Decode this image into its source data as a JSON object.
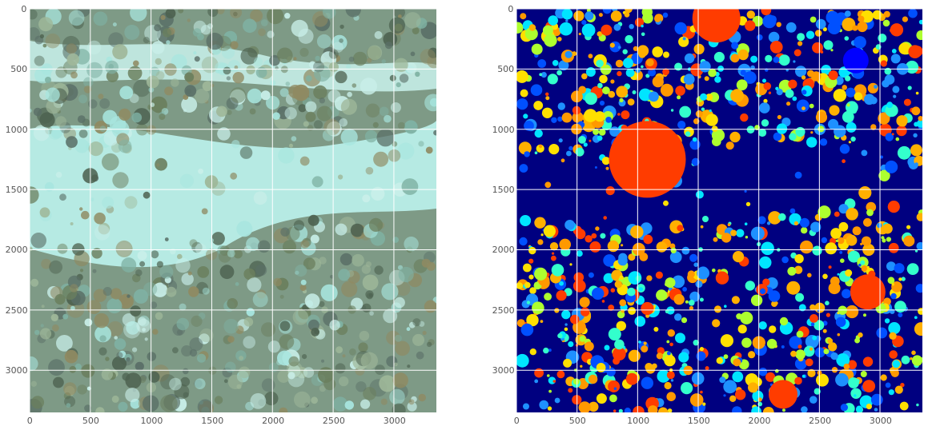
{
  "figure": {
    "panels": [
      {
        "name": "reef-photo-panel",
        "kind": "photo",
        "x_ticks": [
          "0",
          "500",
          "1000",
          "1500",
          "2000",
          "2500",
          "3000"
        ],
        "y_ticks": [
          "0",
          "500",
          "1000",
          "1500",
          "2000",
          "2500",
          "3000"
        ],
        "x_tick_values": [
          0,
          500,
          1000,
          1500,
          2000,
          2500,
          3000
        ],
        "y_tick_values": [
          0,
          500,
          1000,
          1500,
          2000,
          2500,
          3000
        ],
        "xlim": [
          0,
          3350
        ],
        "ylim": [
          3350,
          0
        ],
        "palette": [
          "#a8e6df",
          "#7fb2a4",
          "#6b7f5e",
          "#8f8a62",
          "#4d6250",
          "#c9efe9",
          "#9fb89a",
          "#5a6f67"
        ],
        "grid": true
      },
      {
        "name": "segmentation-panel",
        "kind": "segmentation",
        "x_ticks": [
          "0",
          "500",
          "1000",
          "1500",
          "2000",
          "2500",
          "3000"
        ],
        "y_ticks": [
          "0",
          "500",
          "1000",
          "1500",
          "2000",
          "2500",
          "3000"
        ],
        "x_tick_values": [
          0,
          500,
          1000,
          1500,
          2000,
          2500,
          3000
        ],
        "y_tick_values": [
          0,
          500,
          1000,
          1500,
          2000,
          2500,
          3000
        ],
        "xlim": [
          0,
          3350
        ],
        "ylim": [
          3350,
          0
        ],
        "background_color": "#000080",
        "palette": [
          "#ff9900",
          "#ffb000",
          "#1e90ff",
          "#33ffcc",
          "#adff2f",
          "#ff3c00",
          "#00e5ff",
          "#ffe000",
          "#0050ff"
        ],
        "grid": true
      }
    ],
    "grid_color": "#ffffff"
  }
}
